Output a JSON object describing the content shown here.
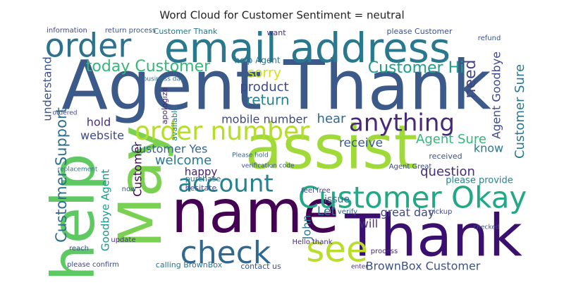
{
  "chart_data": {
    "type": "wordcloud",
    "title": "Word Cloud for Customer Sentiment = neutral",
    "words": [
      {
        "text": "Agent Thank",
        "size": 96,
        "color": "#3b5a8a"
      },
      {
        "text": "email address",
        "size": 58,
        "color": "#2a788e"
      },
      {
        "text": "assist",
        "size": 86,
        "color": "#a0da39"
      },
      {
        "text": "name",
        "size": 84,
        "color": "#440154"
      },
      {
        "text": "Thank",
        "size": 82,
        "color": "#3b0f70"
      },
      {
        "text": "May",
        "size": 84,
        "color": "#7ad151"
      },
      {
        "text": "help",
        "size": 84,
        "color": "#5ec962"
      },
      {
        "text": "Customer Okay",
        "size": 42,
        "color": "#22a884"
      },
      {
        "text": "order number",
        "size": 36,
        "color": "#b5de2b"
      },
      {
        "text": "anything",
        "size": 34,
        "color": "#482878"
      },
      {
        "text": "order",
        "size": 46,
        "color": "#2c728e"
      },
      {
        "text": "check",
        "size": 44,
        "color": "#31688e"
      },
      {
        "text": "see",
        "size": 50,
        "color": "#b8de29"
      },
      {
        "text": "account",
        "size": 34,
        "color": "#26828e"
      },
      {
        "text": "Customer Hi",
        "size": 22,
        "color": "#1f9e89"
      },
      {
        "text": "today Customer",
        "size": 22,
        "color": "#35b779"
      },
      {
        "text": "sorry",
        "size": 19,
        "color": "#d0e11c"
      },
      {
        "text": "product",
        "size": 18,
        "color": "#3e4989"
      },
      {
        "text": "return",
        "size": 20,
        "color": "#26828e"
      },
      {
        "text": "need",
        "size": 22,
        "color": "#414487"
      },
      {
        "text": "Customer Sure",
        "size": 18,
        "color": "#2a788e"
      },
      {
        "text": "Agent Goodbye",
        "size": 16,
        "color": "#3e4989"
      },
      {
        "text": "mobile number",
        "size": 16,
        "color": "#3e4989"
      },
      {
        "text": "hear",
        "size": 18,
        "color": "#31688e"
      },
      {
        "text": "receive",
        "size": 17,
        "color": "#38598c"
      },
      {
        "text": "Agent Sure",
        "size": 18,
        "color": "#35b779"
      },
      {
        "text": "know",
        "size": 16,
        "color": "#2a788e"
      },
      {
        "text": "question",
        "size": 18,
        "color": "#472d7b"
      },
      {
        "text": "please provide",
        "size": 13,
        "color": "#25858e"
      },
      {
        "text": "Customer Yes",
        "size": 16,
        "color": "#31688e"
      },
      {
        "text": "welcome",
        "size": 18,
        "color": "#2a788e"
      },
      {
        "text": "happy",
        "size": 15,
        "color": "#482173"
      },
      {
        "text": "website",
        "size": 16,
        "color": "#3e4989"
      },
      {
        "text": "hold",
        "size": 16,
        "color": "#46327e"
      },
      {
        "text": "Customer Support",
        "size": 21,
        "color": "#2d708e"
      },
      {
        "text": "understand",
        "size": 16,
        "color": "#3b528b"
      },
      {
        "text": "Goodbye Agent",
        "size": 15,
        "color": "#1f988b"
      },
      {
        "text": "Customer",
        "size": 16,
        "color": "#440154"
      },
      {
        "text": "issue",
        "size": 14,
        "color": "#2c728e"
      },
      {
        "text": "Let",
        "size": 17,
        "color": "#2c728e"
      },
      {
        "text": "great day",
        "size": 16,
        "color": "#3e4989"
      },
      {
        "text": "will",
        "size": 16,
        "color": "#46327e"
      },
      {
        "text": "John",
        "size": 16,
        "color": "#2a788e"
      },
      {
        "text": "BrownBox Customer",
        "size": 16,
        "color": "#3b528b"
      },
      {
        "text": "help Agent",
        "size": 12,
        "color": "#2c728e"
      },
      {
        "text": "Customer Thank",
        "size": 11,
        "color": "#2a788e"
      },
      {
        "text": "return process",
        "size": 10,
        "color": "#3b528b"
      },
      {
        "text": "information",
        "size": 10,
        "color": "#3e4989"
      },
      {
        "text": "please Customer",
        "size": 11,
        "color": "#3b528b"
      },
      {
        "text": "want",
        "size": 11,
        "color": "#472d7b"
      },
      {
        "text": "calling BrownBox",
        "size": 11,
        "color": "#2c728e"
      },
      {
        "text": "contact us",
        "size": 11,
        "color": "#3b528b"
      },
      {
        "text": "please confirm",
        "size": 10,
        "color": "#3e4989"
      },
      {
        "text": "apologize",
        "size": 11,
        "color": "#482878"
      },
      {
        "text": "available",
        "size": 11,
        "color": "#2a788e"
      },
      {
        "text": "Hello thank",
        "size": 10,
        "color": "#472d7b"
      },
      {
        "text": "purchase",
        "size": 11,
        "color": "#2c728e"
      },
      {
        "text": "hesitate",
        "size": 11,
        "color": "#3e4989"
      },
      {
        "text": "received",
        "size": 11,
        "color": "#3b528b"
      },
      {
        "text": "Agent Great",
        "size": 10,
        "color": "#3e4989"
      },
      {
        "text": "refund",
        "size": 10,
        "color": "#3b528b"
      },
      {
        "text": "verify",
        "size": 10,
        "color": "#31688e"
      },
      {
        "text": "feel free",
        "size": 10,
        "color": "#3e4989"
      },
      {
        "text": "process",
        "size": 10,
        "color": "#482878"
      },
      {
        "text": "business day",
        "size": 9,
        "color": "#2c728e"
      },
      {
        "text": "verification code",
        "size": 9,
        "color": "#3b528b"
      },
      {
        "text": "Please hold",
        "size": 9,
        "color": "#31688e"
      },
      {
        "text": "reach",
        "size": 10,
        "color": "#3b528b"
      },
      {
        "text": "update",
        "size": 10,
        "color": "#46327e"
      },
      {
        "text": "now",
        "size": 10,
        "color": "#3b528b"
      },
      {
        "text": "replacement",
        "size": 9,
        "color": "#2c728e"
      },
      {
        "text": "ordered",
        "size": 9,
        "color": "#3e4989"
      },
      {
        "text": "enter",
        "size": 9,
        "color": "#472d7b"
      },
      {
        "text": "pickup",
        "size": 10,
        "color": "#3e4989"
      },
      {
        "text": "checked",
        "size": 9,
        "color": "#3b528b"
      }
    ]
  }
}
